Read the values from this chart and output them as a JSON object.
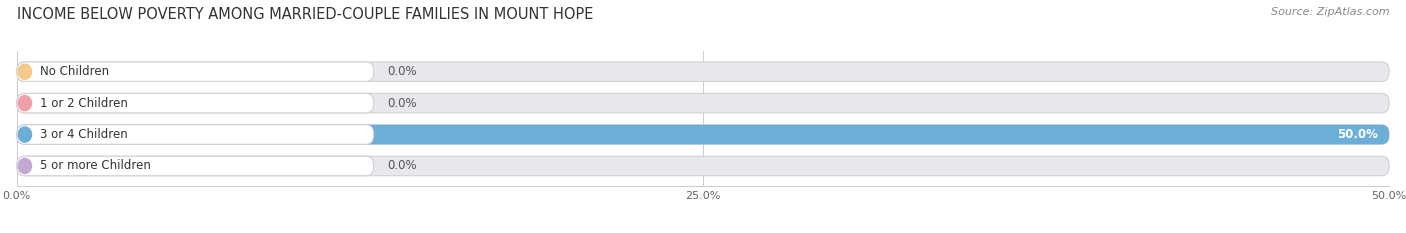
{
  "title": "INCOME BELOW POVERTY AMONG MARRIED-COUPLE FAMILIES IN MOUNT HOPE",
  "source": "Source: ZipAtlas.com",
  "categories": [
    "No Children",
    "1 or 2 Children",
    "3 or 4 Children",
    "5 or more Children"
  ],
  "values": [
    0.0,
    0.0,
    50.0,
    0.0
  ],
  "bar_colors": [
    "#f5c98a",
    "#f0a0a8",
    "#6baed6",
    "#c4a8d4"
  ],
  "xlim": [
    0,
    50
  ],
  "xticks": [
    0,
    25,
    50
  ],
  "xticklabels": [
    "0.0%",
    "25.0%",
    "50.0%"
  ],
  "bar_bg_color": "#e8e8ec",
  "title_fontsize": 10.5,
  "label_fontsize": 8.5,
  "value_fontsize": 8.5,
  "source_fontsize": 8
}
